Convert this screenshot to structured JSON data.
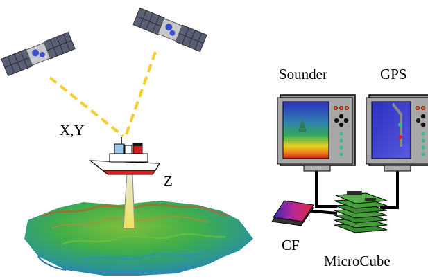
{
  "labels": {
    "xy": "X,Y",
    "z": "Z",
    "sounder": "Sounder",
    "gps": "GPS",
    "cf": "CF",
    "microcube": "MicroCube"
  },
  "colors": {
    "signal_line": "#f5cd2e",
    "hull_red": "#d51e1e",
    "monitor_body": "#909090",
    "screen_blue": "#3a32c9",
    "board_green": "#3f8f35",
    "cable": "#000000"
  },
  "icons": [
    "satellite-icon",
    "ship-icon",
    "terrain-icon",
    "sounder-monitor-icon",
    "gps-monitor-icon",
    "cf-card-icon",
    "microcube-stack-icon"
  ]
}
